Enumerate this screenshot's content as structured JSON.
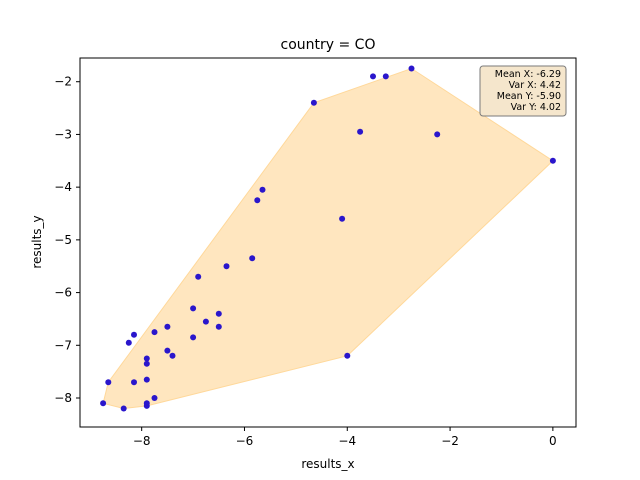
{
  "chart_data": {
    "type": "scatter",
    "title": "country = CO",
    "xlabel": "results_x",
    "ylabel": "results_y",
    "xlim": [
      -9.2,
      0.45
    ],
    "ylim": [
      -8.55,
      -1.55
    ],
    "xticks": [
      -8,
      -6,
      -4,
      -2,
      0
    ],
    "yticks": [
      -8,
      -7,
      -6,
      -5,
      -4,
      -3,
      -2
    ],
    "tick_labels_x": [
      "−8",
      "−6",
      "−4",
      "−2",
      "0"
    ],
    "tick_labels_y": [
      "−8",
      "−7",
      "−6",
      "−5",
      "−4",
      "−3",
      "−2"
    ],
    "grid": false,
    "colors": {
      "points": "#2a16cc",
      "hull_fill": "#ffe6bf",
      "hull_edge": "#ffd89a"
    },
    "points": [
      {
        "x": -8.75,
        "y": -8.1
      },
      {
        "x": -8.65,
        "y": -7.7
      },
      {
        "x": -8.35,
        "y": -8.2
      },
      {
        "x": -8.25,
        "y": -6.95
      },
      {
        "x": -8.15,
        "y": -6.8
      },
      {
        "x": -8.15,
        "y": -7.7
      },
      {
        "x": -7.9,
        "y": -7.25
      },
      {
        "x": -7.9,
        "y": -7.35
      },
      {
        "x": -7.9,
        "y": -7.65
      },
      {
        "x": -7.9,
        "y": -8.1
      },
      {
        "x": -7.9,
        "y": -8.15
      },
      {
        "x": -7.75,
        "y": -6.75
      },
      {
        "x": -7.75,
        "y": -8.0
      },
      {
        "x": -7.5,
        "y": -6.65
      },
      {
        "x": -7.5,
        "y": -7.1
      },
      {
        "x": -7.4,
        "y": -7.2
      },
      {
        "x": -7.0,
        "y": -6.3
      },
      {
        "x": -7.0,
        "y": -6.85
      },
      {
        "x": -6.9,
        "y": -5.7
      },
      {
        "x": -6.75,
        "y": -6.55
      },
      {
        "x": -6.5,
        "y": -6.4
      },
      {
        "x": -6.5,
        "y": -6.65
      },
      {
        "x": -6.35,
        "y": -5.5
      },
      {
        "x": -5.85,
        "y": -5.35
      },
      {
        "x": -5.75,
        "y": -4.25
      },
      {
        "x": -5.65,
        "y": -4.05
      },
      {
        "x": -4.65,
        "y": -2.4
      },
      {
        "x": -4.1,
        "y": -4.6
      },
      {
        "x": -4.0,
        "y": -7.2
      },
      {
        "x": -3.75,
        "y": -2.95
      },
      {
        "x": -3.5,
        "y": -1.9
      },
      {
        "x": -3.25,
        "y": -1.9
      },
      {
        "x": -2.75,
        "y": -1.75
      },
      {
        "x": -2.25,
        "y": -3.0
      },
      {
        "x": 0.0,
        "y": -3.5
      }
    ],
    "hull": [
      {
        "x": -8.75,
        "y": -8.1
      },
      {
        "x": -8.35,
        "y": -8.2
      },
      {
        "x": -7.9,
        "y": -8.15
      },
      {
        "x": -4.0,
        "y": -7.2
      },
      {
        "x": 0.0,
        "y": -3.5
      },
      {
        "x": -2.75,
        "y": -1.75
      },
      {
        "x": -4.65,
        "y": -2.4
      },
      {
        "x": -8.65,
        "y": -7.7
      }
    ],
    "stats": {
      "lines": [
        "Mean X: -6.29",
        "Var X: 4.42",
        "Mean Y: -5.90",
        "Var Y: 4.02"
      ],
      "placement": "top-right"
    }
  }
}
